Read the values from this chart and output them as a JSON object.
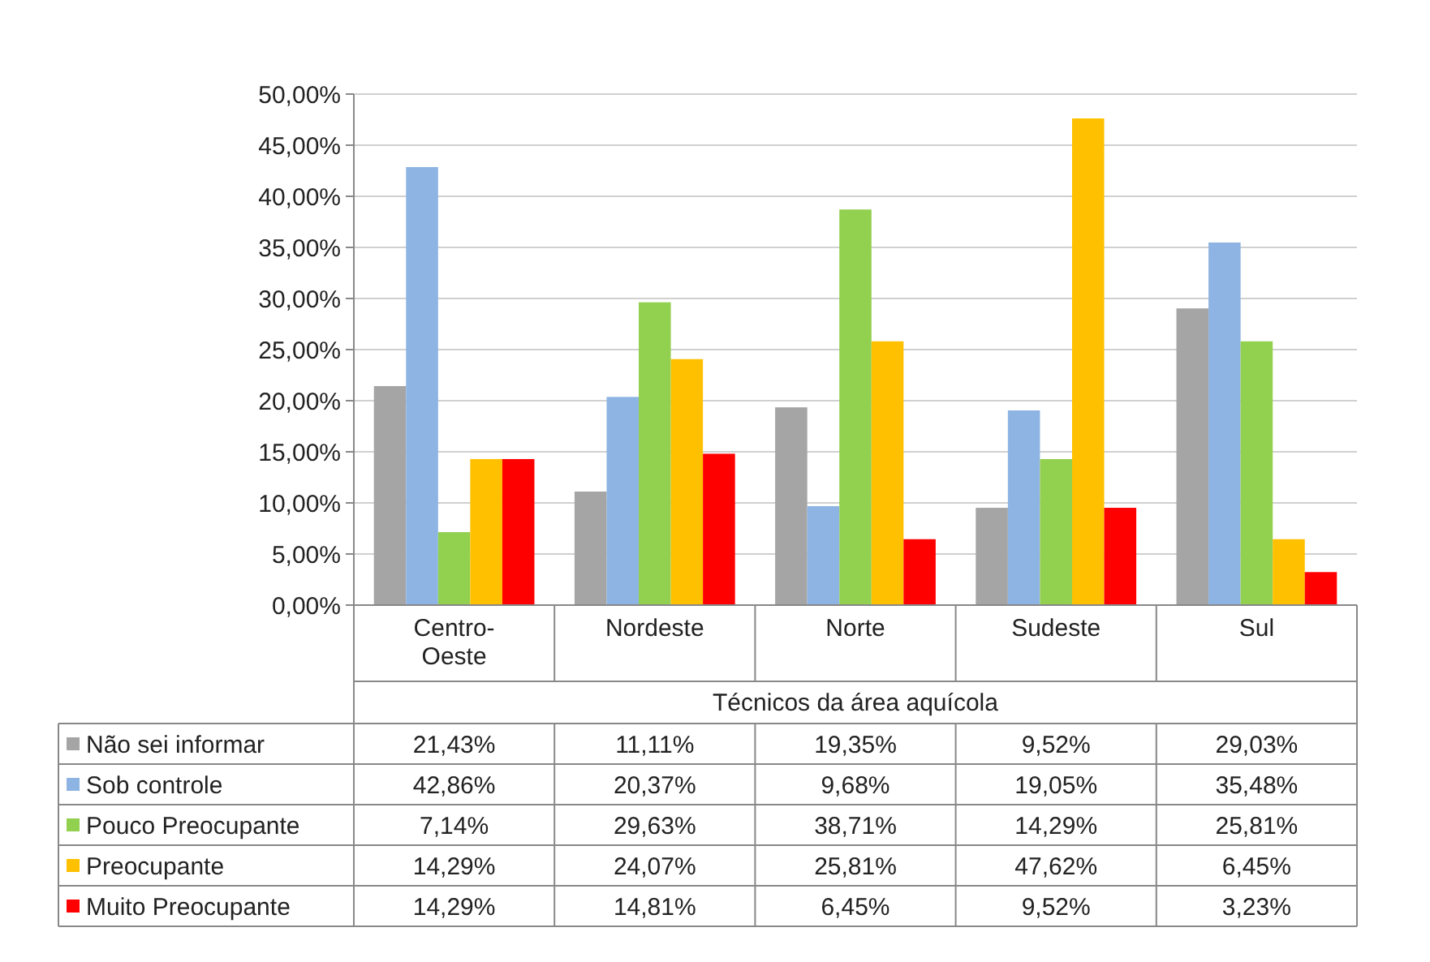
{
  "chart_data": {
    "type": "bar",
    "xlabel": "Técnicos da área aquícola",
    "categories": [
      "Centro-Oeste",
      "Nordeste",
      "Norte",
      "Sudeste",
      "Sul"
    ],
    "ylim": [
      0,
      50
    ],
    "yticks": [
      {
        "value": 0,
        "label": "0,00%"
      },
      {
        "value": 5,
        "label": "5,00%"
      },
      {
        "value": 10,
        "label": "10,00%"
      },
      {
        "value": 15,
        "label": "15,00%"
      },
      {
        "value": 20,
        "label": "20,00%"
      },
      {
        "value": 25,
        "label": "25,00%"
      },
      {
        "value": 30,
        "label": "30,00%"
      },
      {
        "value": 35,
        "label": "35,00%"
      },
      {
        "value": 40,
        "label": "40,00%"
      },
      {
        "value": 45,
        "label": "45,00%"
      },
      {
        "value": 50,
        "label": "50,00%"
      }
    ],
    "grid": "y",
    "legend": "bottom",
    "series": [
      {
        "name": "Não sei informar",
        "color": "#a5a5a5",
        "values": [
          21.43,
          11.11,
          19.35,
          9.52,
          29.03
        ],
        "value_labels": [
          "21,43%",
          "11,11%",
          "19,35%",
          "9,52%",
          "29,03%"
        ]
      },
      {
        "name": "Sob controle",
        "color": "#8eb4e3",
        "values": [
          42.86,
          20.37,
          9.68,
          19.05,
          35.48
        ],
        "value_labels": [
          "42,86%",
          "20,37%",
          "9,68%",
          "19,05%",
          "35,48%"
        ]
      },
      {
        "name": "Pouco Preocupante",
        "color": "#92d050",
        "values": [
          7.14,
          29.63,
          38.71,
          14.29,
          25.81
        ],
        "value_labels": [
          "7,14%",
          "29,63%",
          "38,71%",
          "14,29%",
          "25,81%"
        ]
      },
      {
        "name": "Preocupante",
        "color": "#ffc000",
        "values": [
          14.29,
          24.07,
          25.81,
          47.62,
          6.45
        ],
        "value_labels": [
          "14,29%",
          "24,07%",
          "25,81%",
          "47,62%",
          "6,45%"
        ]
      },
      {
        "name": "Muito Preocupante",
        "color": "#ff0000",
        "values": [
          14.29,
          14.81,
          6.45,
          9.52,
          3.23
        ],
        "value_labels": [
          "14,29%",
          "14,81%",
          "6,45%",
          "9,52%",
          "3,23%"
        ]
      }
    ]
  }
}
